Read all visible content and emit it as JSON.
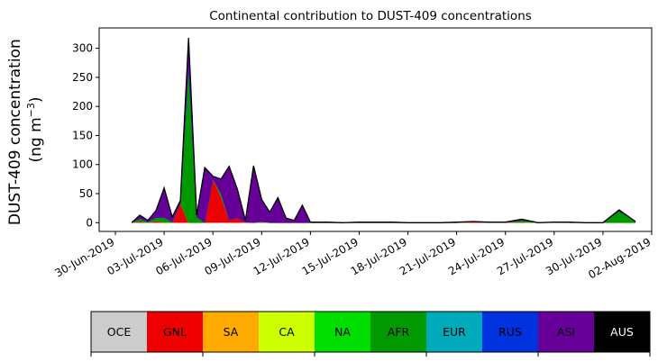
{
  "chart_data": {
    "type": "area",
    "stacked": true,
    "title": "Continental contribution to DUST-409 concentrations",
    "ylabel_line1": "DUST-409 concentration",
    "ylabel_line2": "(ng m",
    "ylabel_sup": "−3",
    "ylabel_close": ")",
    "ylim": [
      -15,
      335
    ],
    "yticks": [
      0,
      50,
      100,
      150,
      200,
      250,
      300
    ],
    "xlim": [
      "2019-06-29",
      "2019-08-02"
    ],
    "xtick_labels": [
      "30-Jun-2019",
      "03-Jul-2019",
      "06-Jul-2019",
      "09-Jul-2019",
      "12-Jul-2019",
      "15-Jul-2019",
      "18-Jul-2019",
      "21-Jul-2019",
      "24-Jul-2019",
      "27-Jul-2019",
      "30-Jul-2019",
      "02-Aug-2019"
    ],
    "xtick_dates": [
      "2019-06-30",
      "2019-07-03",
      "2019-07-06",
      "2019-07-09",
      "2019-07-12",
      "2019-07-15",
      "2019-07-18",
      "2019-07-21",
      "2019-07-24",
      "2019-07-27",
      "2019-07-30",
      "2019-08-02"
    ],
    "x": [
      "2019-07-01",
      "2019-07-01T12",
      "2019-07-02",
      "2019-07-02T12",
      "2019-07-03",
      "2019-07-03T12",
      "2019-07-04",
      "2019-07-04T12",
      "2019-07-05",
      "2019-07-05T12",
      "2019-07-06",
      "2019-07-06T12",
      "2019-07-07",
      "2019-07-07T12",
      "2019-07-08",
      "2019-07-08T12",
      "2019-07-09",
      "2019-07-09T12",
      "2019-07-10",
      "2019-07-10T12",
      "2019-07-11",
      "2019-07-11T12",
      "2019-07-12",
      "2019-07-13",
      "2019-07-14",
      "2019-07-15",
      "2019-07-16",
      "2019-07-17",
      "2019-07-18",
      "2019-07-19",
      "2019-07-20",
      "2019-07-21",
      "2019-07-22",
      "2019-07-23",
      "2019-07-24",
      "2019-07-25",
      "2019-07-26",
      "2019-07-27",
      "2019-07-28",
      "2019-07-29",
      "2019-07-30",
      "2019-07-31",
      "2019-08-01"
    ],
    "series": [
      {
        "name": "OCE",
        "color": "#cccccc",
        "values": [
          0,
          0,
          0,
          0,
          0,
          0,
          0,
          0,
          0,
          0,
          0,
          0,
          0,
          0,
          0,
          0,
          0,
          0,
          0,
          0,
          0,
          0,
          0,
          0,
          0,
          0,
          0,
          0,
          0,
          0,
          0,
          0,
          0,
          0,
          0,
          0,
          0,
          0,
          0,
          0,
          0,
          0,
          0
        ]
      },
      {
        "name": "GNL",
        "color": "#ee0000",
        "values": [
          0,
          2,
          0,
          3,
          1,
          0,
          33,
          0,
          0,
          0,
          75,
          45,
          5,
          8,
          1,
          0,
          1,
          0,
          0,
          0,
          0,
          0,
          0,
          0,
          0,
          0,
          0,
          0,
          0,
          0,
          0,
          0,
          2,
          1,
          1,
          1,
          0,
          1,
          0,
          0,
          0,
          0,
          0
        ]
      },
      {
        "name": "SA",
        "color": "#ffaa00",
        "values": [
          0,
          0,
          0,
          0,
          0,
          0,
          0,
          0,
          0,
          0,
          0,
          0,
          0,
          0,
          0,
          0,
          0,
          0,
          0,
          0,
          0,
          0,
          0,
          0,
          0,
          0,
          0,
          0,
          0,
          0,
          0,
          0,
          0,
          0,
          0,
          0,
          0,
          0,
          0,
          0,
          0,
          0,
          0
        ]
      },
      {
        "name": "CA",
        "color": "#ccff00",
        "values": [
          0,
          0,
          0,
          0,
          0,
          0,
          0,
          0,
          0,
          0,
          0,
          0,
          0,
          0,
          0,
          0,
          0,
          0,
          0,
          0,
          0,
          0,
          0,
          0,
          0,
          0,
          0,
          0,
          0,
          0,
          0,
          0,
          0,
          0,
          0,
          0,
          0,
          0,
          0,
          0,
          0,
          0,
          0
        ]
      },
      {
        "name": "NA",
        "color": "#00dd00",
        "values": [
          0,
          0,
          0,
          0,
          0,
          0,
          0,
          0,
          0,
          0,
          0,
          0,
          0,
          0,
          0,
          0,
          0,
          0,
          0,
          0,
          0,
          0,
          0,
          0,
          0,
          0,
          0,
          0,
          0,
          0,
          0,
          0,
          0,
          0,
          0,
          0,
          0,
          0,
          0,
          0,
          0,
          0,
          0
        ]
      },
      {
        "name": "AFR",
        "color": "#009900",
        "values": [
          0,
          5,
          1,
          6,
          8,
          1,
          0,
          270,
          10,
          0,
          0,
          5,
          0,
          0,
          0,
          0,
          1,
          0,
          0,
          0,
          0,
          0,
          0,
          0,
          0,
          0,
          0,
          0,
          0,
          0,
          0,
          0,
          0,
          0,
          0,
          3,
          0,
          0,
          0,
          0,
          0,
          20,
          2
        ]
      },
      {
        "name": "EUR",
        "color": "#00aabb",
        "values": [
          0,
          0,
          0,
          0,
          0,
          0,
          0,
          0,
          0,
          0,
          0,
          0,
          0,
          0,
          0,
          0,
          0,
          0,
          0,
          0,
          0,
          0,
          0,
          0,
          0,
          0,
          0,
          0,
          0,
          0,
          0,
          0,
          0,
          0,
          0,
          0,
          0,
          0,
          0,
          0,
          0,
          0,
          0
        ]
      },
      {
        "name": "RUS",
        "color": "#0033dd",
        "values": [
          0,
          0,
          0,
          0,
          0,
          0,
          0,
          0,
          0,
          0,
          0,
          0,
          0,
          0,
          0,
          0,
          0,
          0,
          0,
          0,
          0,
          0,
          0,
          0,
          0,
          0,
          0,
          0,
          0,
          0,
          0,
          0,
          0,
          0,
          0,
          0,
          0,
          0,
          0,
          0,
          0,
          0,
          0
        ]
      },
      {
        "name": "ASI",
        "color": "#660099",
        "values": [
          0,
          6,
          3,
          12,
          51,
          9,
          5,
          48,
          3,
          95,
          5,
          25,
          92,
          50,
          3,
          98,
          38,
          18,
          43,
          8,
          4,
          30,
          1,
          1,
          0,
          1,
          1,
          1,
          0,
          0,
          0,
          1,
          0,
          0,
          0,
          2,
          0,
          0,
          1,
          0,
          0,
          2,
          0
        ]
      },
      {
        "name": "AUS",
        "color": "#000000",
        "values": [
          0,
          0,
          0,
          0,
          0,
          0,
          0,
          0,
          0,
          0,
          0,
          0,
          0,
          0,
          0,
          0,
          0,
          0,
          0,
          0,
          0,
          0,
          0,
          0,
          0,
          0,
          0,
          0,
          0,
          0,
          0,
          0,
          0,
          0,
          0,
          0,
          0,
          0,
          0,
          0,
          0,
          0,
          0
        ]
      }
    ],
    "legend_placement": "bottom colorbar",
    "grid": false
  }
}
